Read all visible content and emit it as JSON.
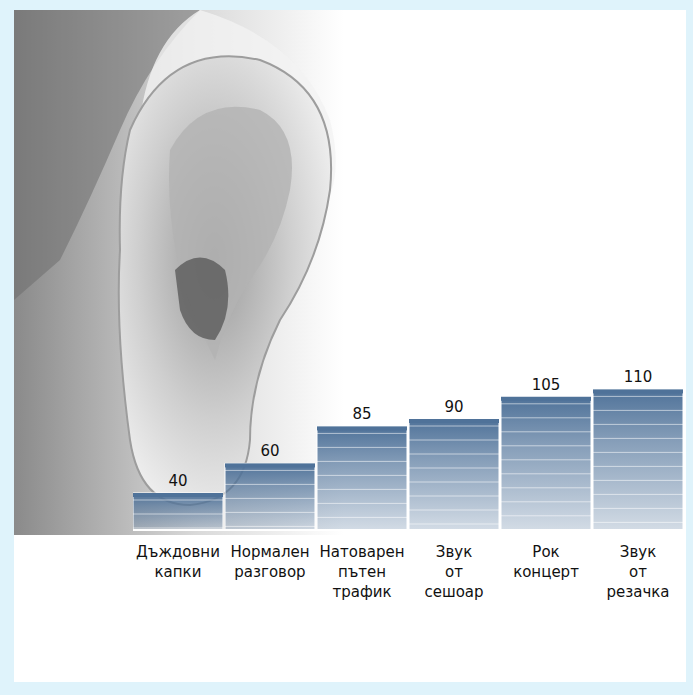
{
  "chart_data": {
    "type": "bar",
    "categories": [
      "Дъждовни капки",
      "Нормален разговор",
      "Натоварен пътен трафик",
      "Звук от сешоар",
      "Рок концерт",
      "Звук от резачка"
    ],
    "values": [
      40,
      60,
      85,
      90,
      105,
      110
    ],
    "color": "#4f7299",
    "ylim": [
      15,
      115
    ],
    "grid": false,
    "data_labels": true,
    "tick_labels": false
  }
}
